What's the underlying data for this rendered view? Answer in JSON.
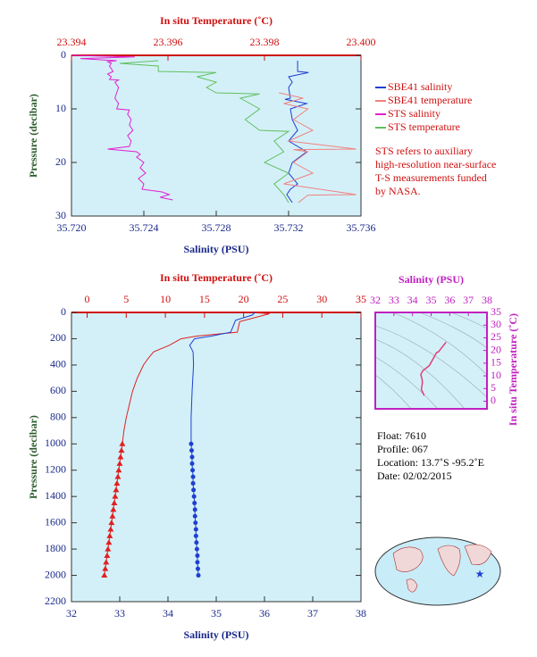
{
  "chart_data": [
    {
      "type": "profile",
      "xlabel": "Salinity (PSU)",
      "x2label": "In situ Temperature (˚C)",
      "ylabel": "Pressure (decibar)",
      "xlim": [
        35.72,
        35.736
      ],
      "xticks": [
        {
          "value": 35.72,
          "label": "35.720"
        },
        {
          "value": 35.724,
          "label": "35.724"
        },
        {
          "value": 35.728,
          "label": "35.728"
        },
        {
          "value": 35.732,
          "label": "35.732"
        },
        {
          "value": 35.736,
          "label": "35.736"
        }
      ],
      "x2lim": [
        23.394,
        23.4
      ],
      "x2ticks": [
        23.394,
        23.396,
        23.398,
        {
          "value": 23.4,
          "label": "23.400"
        }
      ],
      "ylim": [
        0,
        30
      ],
      "y_inverted": true,
      "yticks": [
        0,
        10,
        20,
        30
      ],
      "legend": "right",
      "series": [
        {
          "name": "SBE41 salinity",
          "color": "#1f3fd0",
          "axis": "x",
          "pressure": [
            1,
            3,
            3.2,
            4,
            5,
            6,
            8,
            8.2,
            9,
            10,
            12,
            14,
            16,
            18,
            20,
            22,
            24,
            25,
            26,
            27.5
          ],
          "values": [
            35.7325,
            35.7325,
            35.7331,
            35.732,
            35.7322,
            35.732,
            35.7321,
            35.7318,
            35.733,
            35.7321,
            35.7322,
            35.7325,
            35.732,
            35.733,
            35.7322,
            35.732,
            35.7325,
            35.7321,
            35.7319,
            35.7322
          ]
        },
        {
          "name": "SBE41 temperature",
          "color": "#f08080",
          "axis": "x2",
          "pressure": [
            7,
            8,
            9,
            10,
            12,
            14,
            16,
            17.5,
            17.6,
            18,
            20,
            22,
            24,
            26,
            26.1,
            27.5
          ],
          "values": [
            23.3983,
            23.3988,
            23.3984,
            23.3989,
            23.3986,
            23.399,
            23.3985,
            23.3999,
            23.3986,
            23.3989,
            23.3986,
            23.399,
            23.3984,
            23.3999,
            23.3989,
            23.3987
          ]
        },
        {
          "name": "STS salinity",
          "color": "#e020d0",
          "axis": "x",
          "pressure": [
            0,
            0.3,
            0.6,
            1,
            1.2,
            1.5,
            2,
            2.5,
            3,
            3.5,
            4,
            4.5,
            4.6,
            5,
            6,
            7,
            8,
            9,
            10,
            10.2,
            11,
            12,
            13,
            14,
            15,
            16,
            17,
            17.5,
            18,
            18.5,
            19,
            20,
            21,
            22,
            23,
            24,
            25,
            25.5,
            26,
            26.5,
            27
          ],
          "values": [
            35.72,
            35.7235,
            35.7205,
            35.7225,
            35.722,
            35.7222,
            35.7221,
            35.7222,
            35.7223,
            35.722,
            35.7222,
            35.7221,
            35.7226,
            35.7224,
            35.7226,
            35.7225,
            35.7224,
            35.7226,
            35.7225,
            35.7232,
            35.7231,
            35.7233,
            35.7232,
            35.7234,
            35.7231,
            35.7233,
            35.7232,
            35.722,
            35.7236,
            35.7238,
            35.7236,
            35.724,
            35.7238,
            35.7241,
            35.7237,
            35.724,
            35.7239,
            35.725,
            35.7254,
            35.7249,
            35.7256
          ]
        },
        {
          "name": "STS temperature",
          "color": "#60c060",
          "axis": "x2",
          "pressure": [
            1,
            1.5,
            2,
            3,
            3.2,
            4,
            5,
            6,
            7,
            7.2,
            8,
            10,
            12,
            14,
            14.2,
            16,
            18,
            20,
            22,
            24,
            26,
            27.5
          ],
          "values": [
            23.3958,
            23.395,
            23.3958,
            23.3958,
            23.397,
            23.3966,
            23.397,
            23.3968,
            23.397,
            23.3979,
            23.3975,
            23.3979,
            23.3976,
            23.3979,
            23.3985,
            23.3982,
            23.3984,
            23.398,
            23.3985,
            23.3982,
            23.3984,
            23.3985
          ]
        }
      ],
      "note": [
        "STS refers to auxiliary",
        "high-resolution near-surface",
        "T-S measurements funded",
        "by NASA."
      ]
    },
    {
      "type": "profile",
      "xlabel": "Salinity (PSU)",
      "x2label": "In situ Temperature (˚C)",
      "ylabel": "Pressure (decibar)",
      "xlim": [
        32,
        38
      ],
      "xticks": [
        32,
        33,
        34,
        35,
        36,
        37,
        38
      ],
      "x2lim": [
        -2,
        35
      ],
      "x2ticks": [
        0,
        5,
        10,
        15,
        20,
        25,
        30,
        35
      ],
      "ylim": [
        0,
        2200
      ],
      "y_inverted": true,
      "yticks": [
        0,
        200,
        400,
        600,
        800,
        1000,
        1200,
        1400,
        1600,
        1800,
        2000,
        2200
      ],
      "series": [
        {
          "color": "#e02020",
          "axis": "x2",
          "pressure": [
            0,
            10,
            70,
            150,
            180,
            200,
            250,
            300,
            350,
            400,
            500,
            600,
            700,
            800,
            900,
            1000
          ],
          "values": [
            21,
            23.3,
            19.5,
            19.2,
            14,
            12,
            10.5,
            8.5,
            7.8,
            7.2,
            6.4,
            5.8,
            5.4,
            5,
            4.7,
            4.5
          ]
        },
        {
          "color": "#e02020",
          "axis": "x2",
          "marker": "triangle",
          "pressure": [
            1000,
            1050,
            1100,
            1150,
            1200,
            1250,
            1300,
            1350,
            1400,
            1450,
            1500,
            1550,
            1600,
            1650,
            1700,
            1750,
            1800,
            1850,
            1900,
            1950,
            2000
          ],
          "values": [
            4.5,
            4.39,
            4.27,
            4.16,
            4.04,
            3.93,
            3.81,
            3.7,
            3.58,
            3.47,
            3.35,
            3.24,
            3.12,
            3.01,
            2.89,
            2.78,
            2.66,
            2.55,
            2.43,
            2.32,
            2.2
          ]
        },
        {
          "color": "#1f3fd0",
          "axis": "x",
          "pressure": [
            0,
            20,
            60,
            150,
            180,
            200,
            250,
            300,
            400,
            600,
            800,
            1000
          ],
          "values": [
            35.8,
            35.75,
            35.4,
            35.3,
            34.9,
            34.55,
            34.45,
            34.52,
            34.53,
            34.5,
            34.48,
            34.48
          ]
        },
        {
          "color": "#1f3fd0",
          "axis": "x",
          "marker": "circle",
          "pressure": [
            1000,
            1050,
            1100,
            1150,
            1200,
            1250,
            1300,
            1350,
            1400,
            1450,
            1500,
            1550,
            1600,
            1650,
            1700,
            1750,
            1800,
            1850,
            1900,
            1950,
            2000
          ],
          "values": [
            34.48,
            34.49,
            34.5,
            34.5,
            34.51,
            34.52,
            34.52,
            34.53,
            34.54,
            34.55,
            34.56,
            34.56,
            34.57,
            34.58,
            34.58,
            34.59,
            34.6,
            34.61,
            34.61,
            34.62,
            34.63
          ]
        }
      ]
    },
    {
      "type": "ts",
      "xlabel": "Salinity (PSU)",
      "ylabel": "In situ Temperature (˚C)",
      "xlim": [
        32,
        38
      ],
      "xticks": [
        32,
        33,
        34,
        35,
        36,
        37,
        38
      ],
      "ylim": [
        -3,
        35
      ],
      "yticks": [
        0,
        5,
        10,
        15,
        20,
        25,
        30,
        35
      ],
      "series": [
        {
          "color": "#e0407a",
          "salinity": [
            35.8,
            35.4,
            35.3,
            34.9,
            34.55,
            34.45,
            34.52,
            34.53,
            34.5,
            34.48,
            34.48,
            34.55,
            34.63
          ],
          "temperature": [
            23.3,
            19.5,
            19.2,
            14,
            12,
            10.5,
            8.5,
            7.2,
            5.8,
            5,
            4.5,
            3.5,
            2.2
          ]
        }
      ]
    }
  ],
  "info": [
    "Float:  7610",
    "Profile:  067",
    "Location:  13.7˚S  -95.2˚E",
    "Date:  02/02/2015"
  ]
}
